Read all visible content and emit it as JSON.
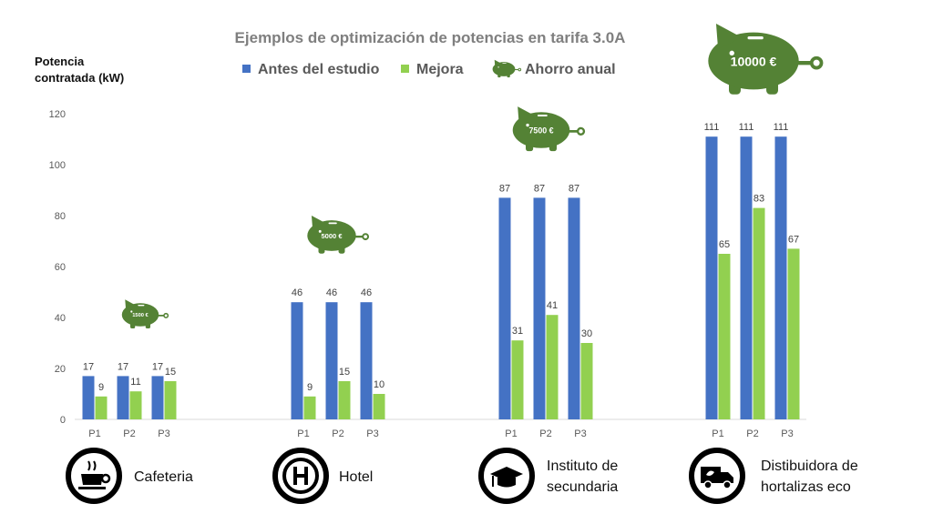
{
  "chart_data": {
    "type": "bar",
    "title": "Ejemplos de optimización de potencias en tarifa 3.0A",
    "ylabel": [
      "Potencia",
      "contratada (kW)"
    ],
    "ylim": [
      0,
      120
    ],
    "yticks": [
      0,
      20,
      40,
      60,
      80,
      100,
      120
    ],
    "grid": false,
    "legend_position": "top",
    "legend": [
      "Antes del estudio",
      "Mejora",
      "Ahorro anual"
    ],
    "colors": {
      "before": "#4472c4",
      "after": "#92d050",
      "piggy": "#548235"
    },
    "groups": [
      {
        "client": [
          "Cafeteria"
        ],
        "icon": "coffee-cup-icon",
        "saving": "1500 €",
        "categories": [
          "P1",
          "P2",
          "P3"
        ],
        "before": [
          17,
          17,
          17
        ],
        "after": [
          9,
          11,
          15
        ]
      },
      {
        "client": [
          "Hotel"
        ],
        "icon": "hotel-icon",
        "saving": "5000 €",
        "categories": [
          "P1",
          "P2",
          "P3"
        ],
        "before": [
          46,
          46,
          46
        ],
        "after": [
          9,
          15,
          10
        ]
      },
      {
        "client": [
          "Instituto de",
          "secundaria"
        ],
        "icon": "graduation-cap-icon",
        "saving": "7500 €",
        "categories": [
          "P1",
          "P2",
          "P3"
        ],
        "before": [
          87,
          87,
          87
        ],
        "after": [
          31,
          41,
          30
        ]
      },
      {
        "client": [
          "Distibuidora de",
          "hortalizas eco"
        ],
        "icon": "delivery-van-icon",
        "saving": "10000 €",
        "categories": [
          "P1",
          "P2",
          "P3"
        ],
        "before": [
          111,
          111,
          111
        ],
        "after": [
          65,
          83,
          67
        ]
      }
    ]
  }
}
